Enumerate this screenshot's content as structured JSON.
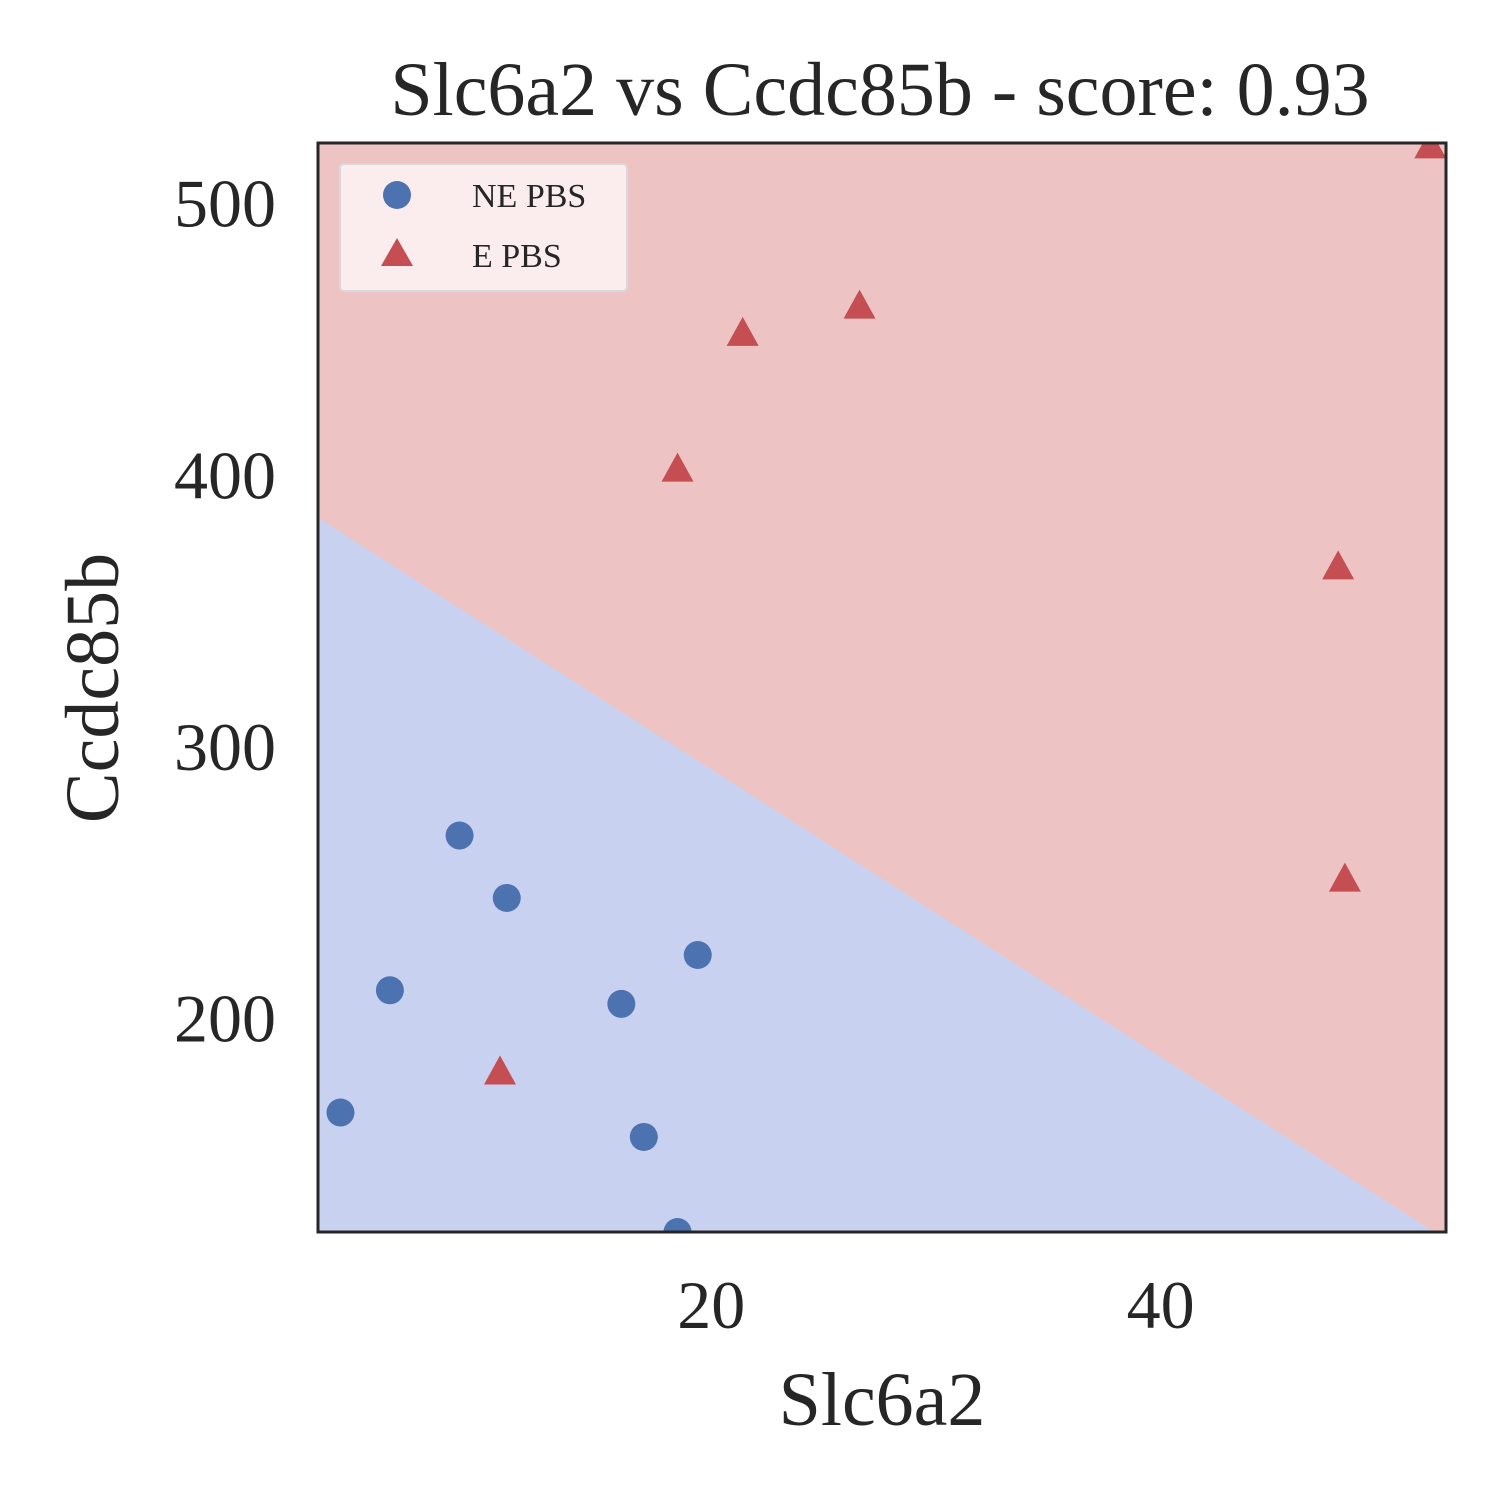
{
  "chart_data": {
    "type": "scatter",
    "title": "Slc6a2 vs Ccdc85b - score: 0.93",
    "xlabel": "Slc6a2",
    "ylabel": "Ccdc85b",
    "xlim": [
      2.5,
      52.7
    ],
    "ylim": [
      121,
      522
    ],
    "xticks": [
      20,
      40
    ],
    "yticks": [
      200,
      300,
      400,
      500
    ],
    "grid": false,
    "legend_position": "top-left",
    "decision_boundary": {
      "points": [
        [
          2.5,
          384
        ],
        [
          51.8,
          123
        ]
      ],
      "below_class": "NE PBS",
      "above_class": "E PBS"
    },
    "colors": {
      "NE PBS": "#4c72b0",
      "E PBS": "#c44e52",
      "region_NE PBS": "#c9d1f1",
      "region_E PBS": "#edc4c3"
    },
    "series": [
      {
        "name": "NE PBS",
        "marker": "circle",
        "points": [
          [
            3.5,
            165
          ],
          [
            5.7,
            210
          ],
          [
            8.8,
            267
          ],
          [
            10.9,
            244
          ],
          [
            16.0,
            205
          ],
          [
            17.0,
            156
          ],
          [
            18.5,
            121
          ],
          [
            19.4,
            223
          ]
        ]
      },
      {
        "name": "E PBS",
        "marker": "triangle",
        "points": [
          [
            10.6,
            179
          ],
          [
            18.5,
            401
          ],
          [
            21.4,
            451
          ],
          [
            26.6,
            461
          ],
          [
            47.9,
            365
          ],
          [
            48.2,
            250
          ],
          [
            52.0,
            520
          ]
        ]
      }
    ]
  }
}
